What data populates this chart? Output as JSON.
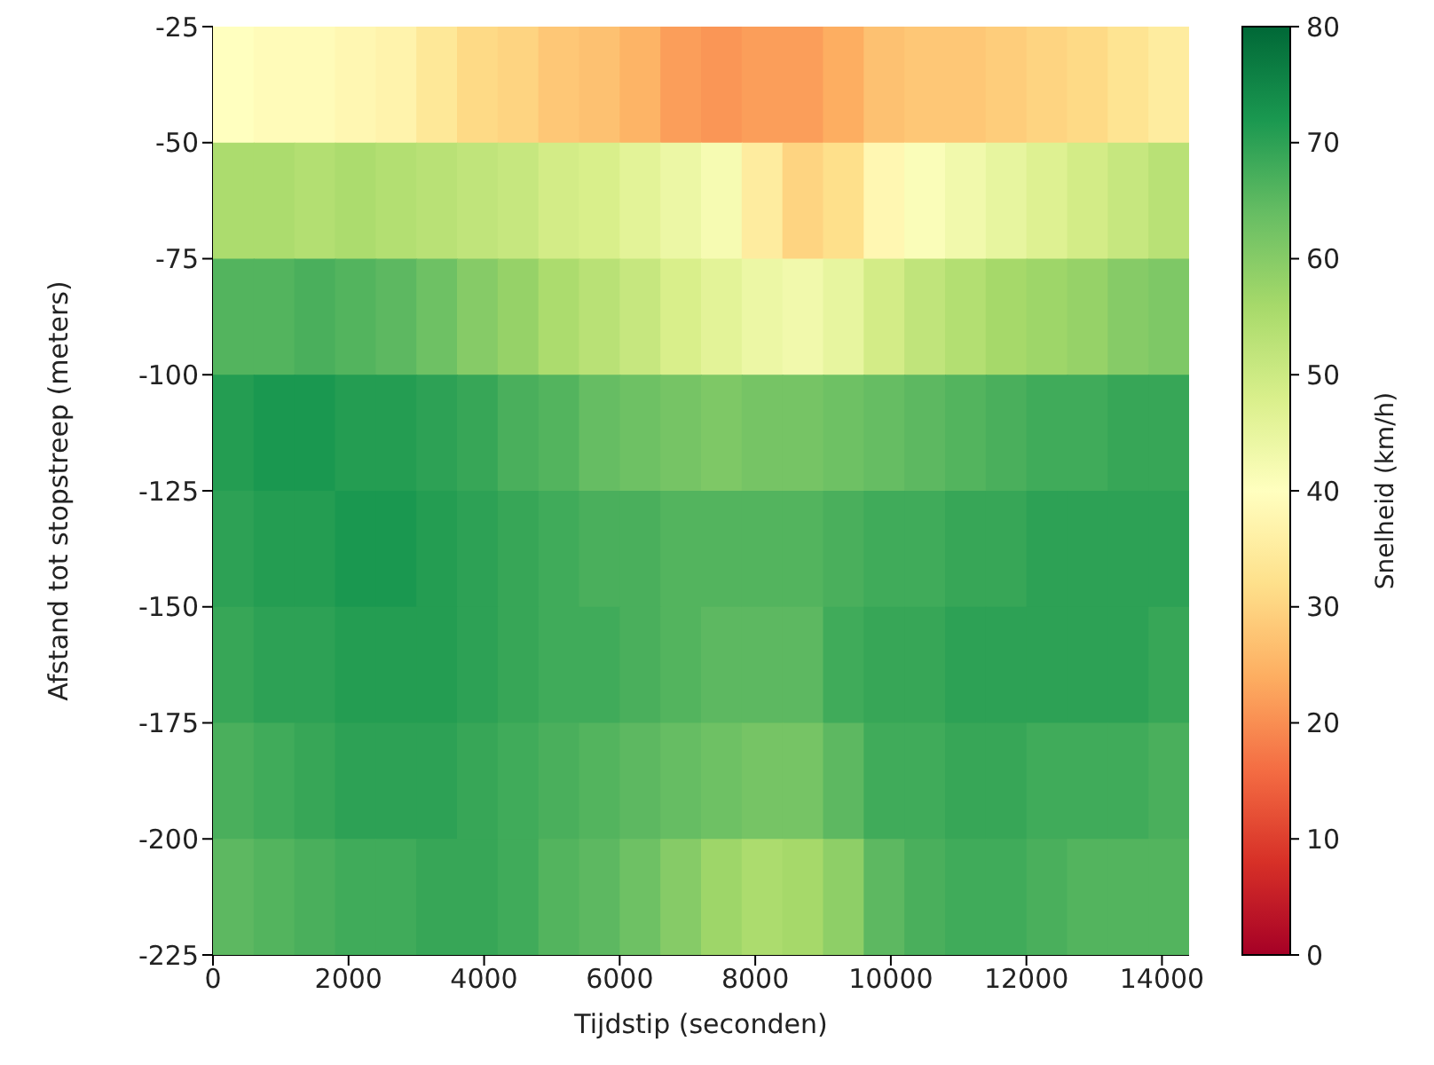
{
  "chart_data": {
    "type": "heatmap",
    "xlabel": "Tijdstip (seconden)",
    "ylabel": "Afstand tot stopstreep (meters)",
    "clabel": "Snelheid (km/h)",
    "x": [
      300,
      900,
      1500,
      2100,
      2700,
      3300,
      3900,
      4500,
      5100,
      5700,
      6300,
      6900,
      7500,
      8100,
      8700,
      9300,
      9900,
      10500,
      11100,
      11700,
      12300,
      12900,
      13500,
      14100
    ],
    "xlim": [
      0,
      14400
    ],
    "xticks": [
      0,
      2000,
      4000,
      6000,
      8000,
      10000,
      12000,
      14000
    ],
    "ylim": [
      -225,
      -25
    ],
    "yticks": [
      -25,
      -50,
      -75,
      -100,
      -125,
      -150,
      -175,
      -200,
      -225
    ],
    "clim": [
      0,
      80
    ],
    "cticks": [
      0,
      10,
      20,
      30,
      40,
      50,
      60,
      70,
      80
    ],
    "cells": [
      [
        40,
        39,
        39,
        38,
        37,
        34,
        31,
        30,
        28,
        27,
        25,
        22,
        21,
        22,
        22,
        24,
        27,
        28,
        28,
        29,
        30,
        31,
        33,
        35
      ],
      [
        55,
        55,
        54,
        55,
        54,
        53,
        52,
        51,
        49,
        48,
        46,
        44,
        42,
        35,
        30,
        32,
        38,
        41,
        43,
        45,
        47,
        49,
        51,
        53
      ],
      [
        66,
        66,
        67,
        66,
        65,
        63,
        60,
        58,
        55,
        53,
        51,
        48,
        46,
        44,
        43,
        45,
        49,
        52,
        54,
        56,
        57,
        58,
        60,
        61
      ],
      [
        71,
        72,
        72,
        71,
        71,
        70,
        69,
        67,
        66,
        64,
        63,
        62,
        61,
        62,
        62,
        63,
        64,
        65,
        66,
        67,
        68,
        68,
        69,
        69
      ],
      [
        70,
        71,
        71,
        72,
        72,
        71,
        70,
        69,
        68,
        67,
        67,
        66,
        66,
        66,
        66,
        67,
        68,
        68,
        69,
        69,
        70,
        70,
        70,
        70
      ],
      [
        69,
        70,
        70,
        71,
        71,
        71,
        70,
        69,
        68,
        68,
        67,
        66,
        65,
        65,
        65,
        68,
        69,
        69,
        70,
        70,
        70,
        70,
        70,
        69
      ],
      [
        67,
        68,
        69,
        70,
        70,
        70,
        69,
        68,
        67,
        66,
        65,
        64,
        63,
        62,
        62,
        65,
        68,
        68,
        69,
        69,
        68,
        68,
        68,
        67
      ],
      [
        65,
        66,
        67,
        68,
        68,
        69,
        69,
        68,
        66,
        65,
        63,
        60,
        57,
        55,
        56,
        59,
        65,
        67,
        68,
        68,
        67,
        66,
        66,
        66
      ]
    ]
  }
}
